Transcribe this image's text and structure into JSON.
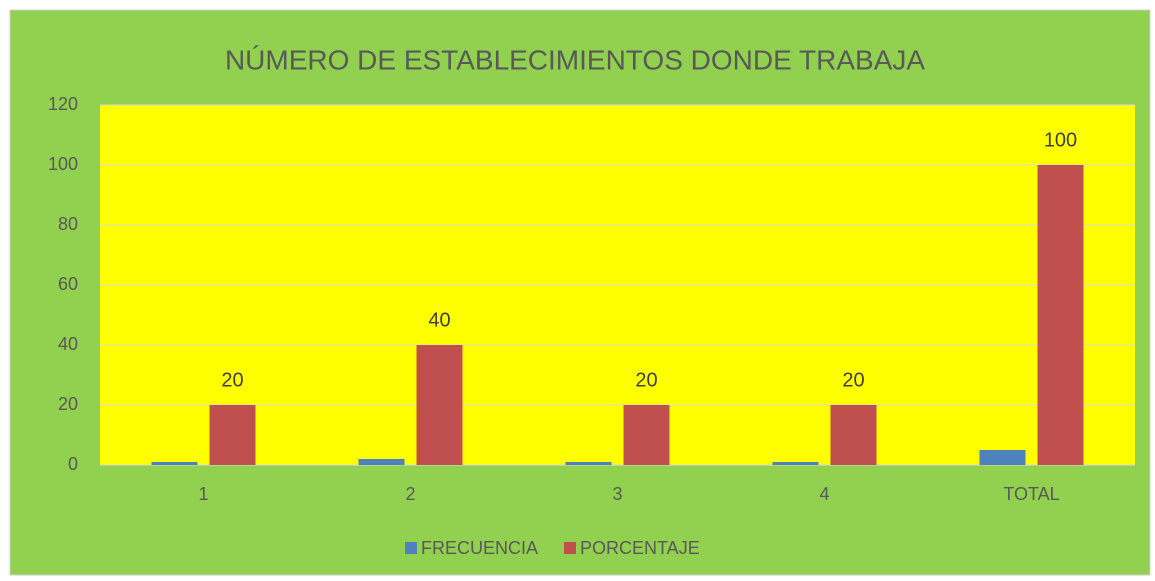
{
  "chart_data": {
    "type": "bar",
    "title": "NÚMERO DE ESTABLECIMIENTOS DONDE TRABAJA",
    "categories": [
      "1",
      "2",
      "3",
      "4",
      "TOTAL"
    ],
    "series": [
      {
        "name": "FRECUENCIA",
        "color": "#4f81bd",
        "values": [
          1,
          2,
          1,
          1,
          5
        ],
        "data_labels": false
      },
      {
        "name": "PORCENTAJE",
        "color": "#c0504d",
        "values": [
          20,
          40,
          20,
          20,
          100
        ],
        "data_labels": true
      }
    ],
    "ylim": [
      0,
      120
    ],
    "yticks": [
      0,
      20,
      40,
      60,
      80,
      100,
      120
    ],
    "grid": true,
    "legend": "bottom",
    "background": "#92d050",
    "plot_background": "#ffff00"
  }
}
